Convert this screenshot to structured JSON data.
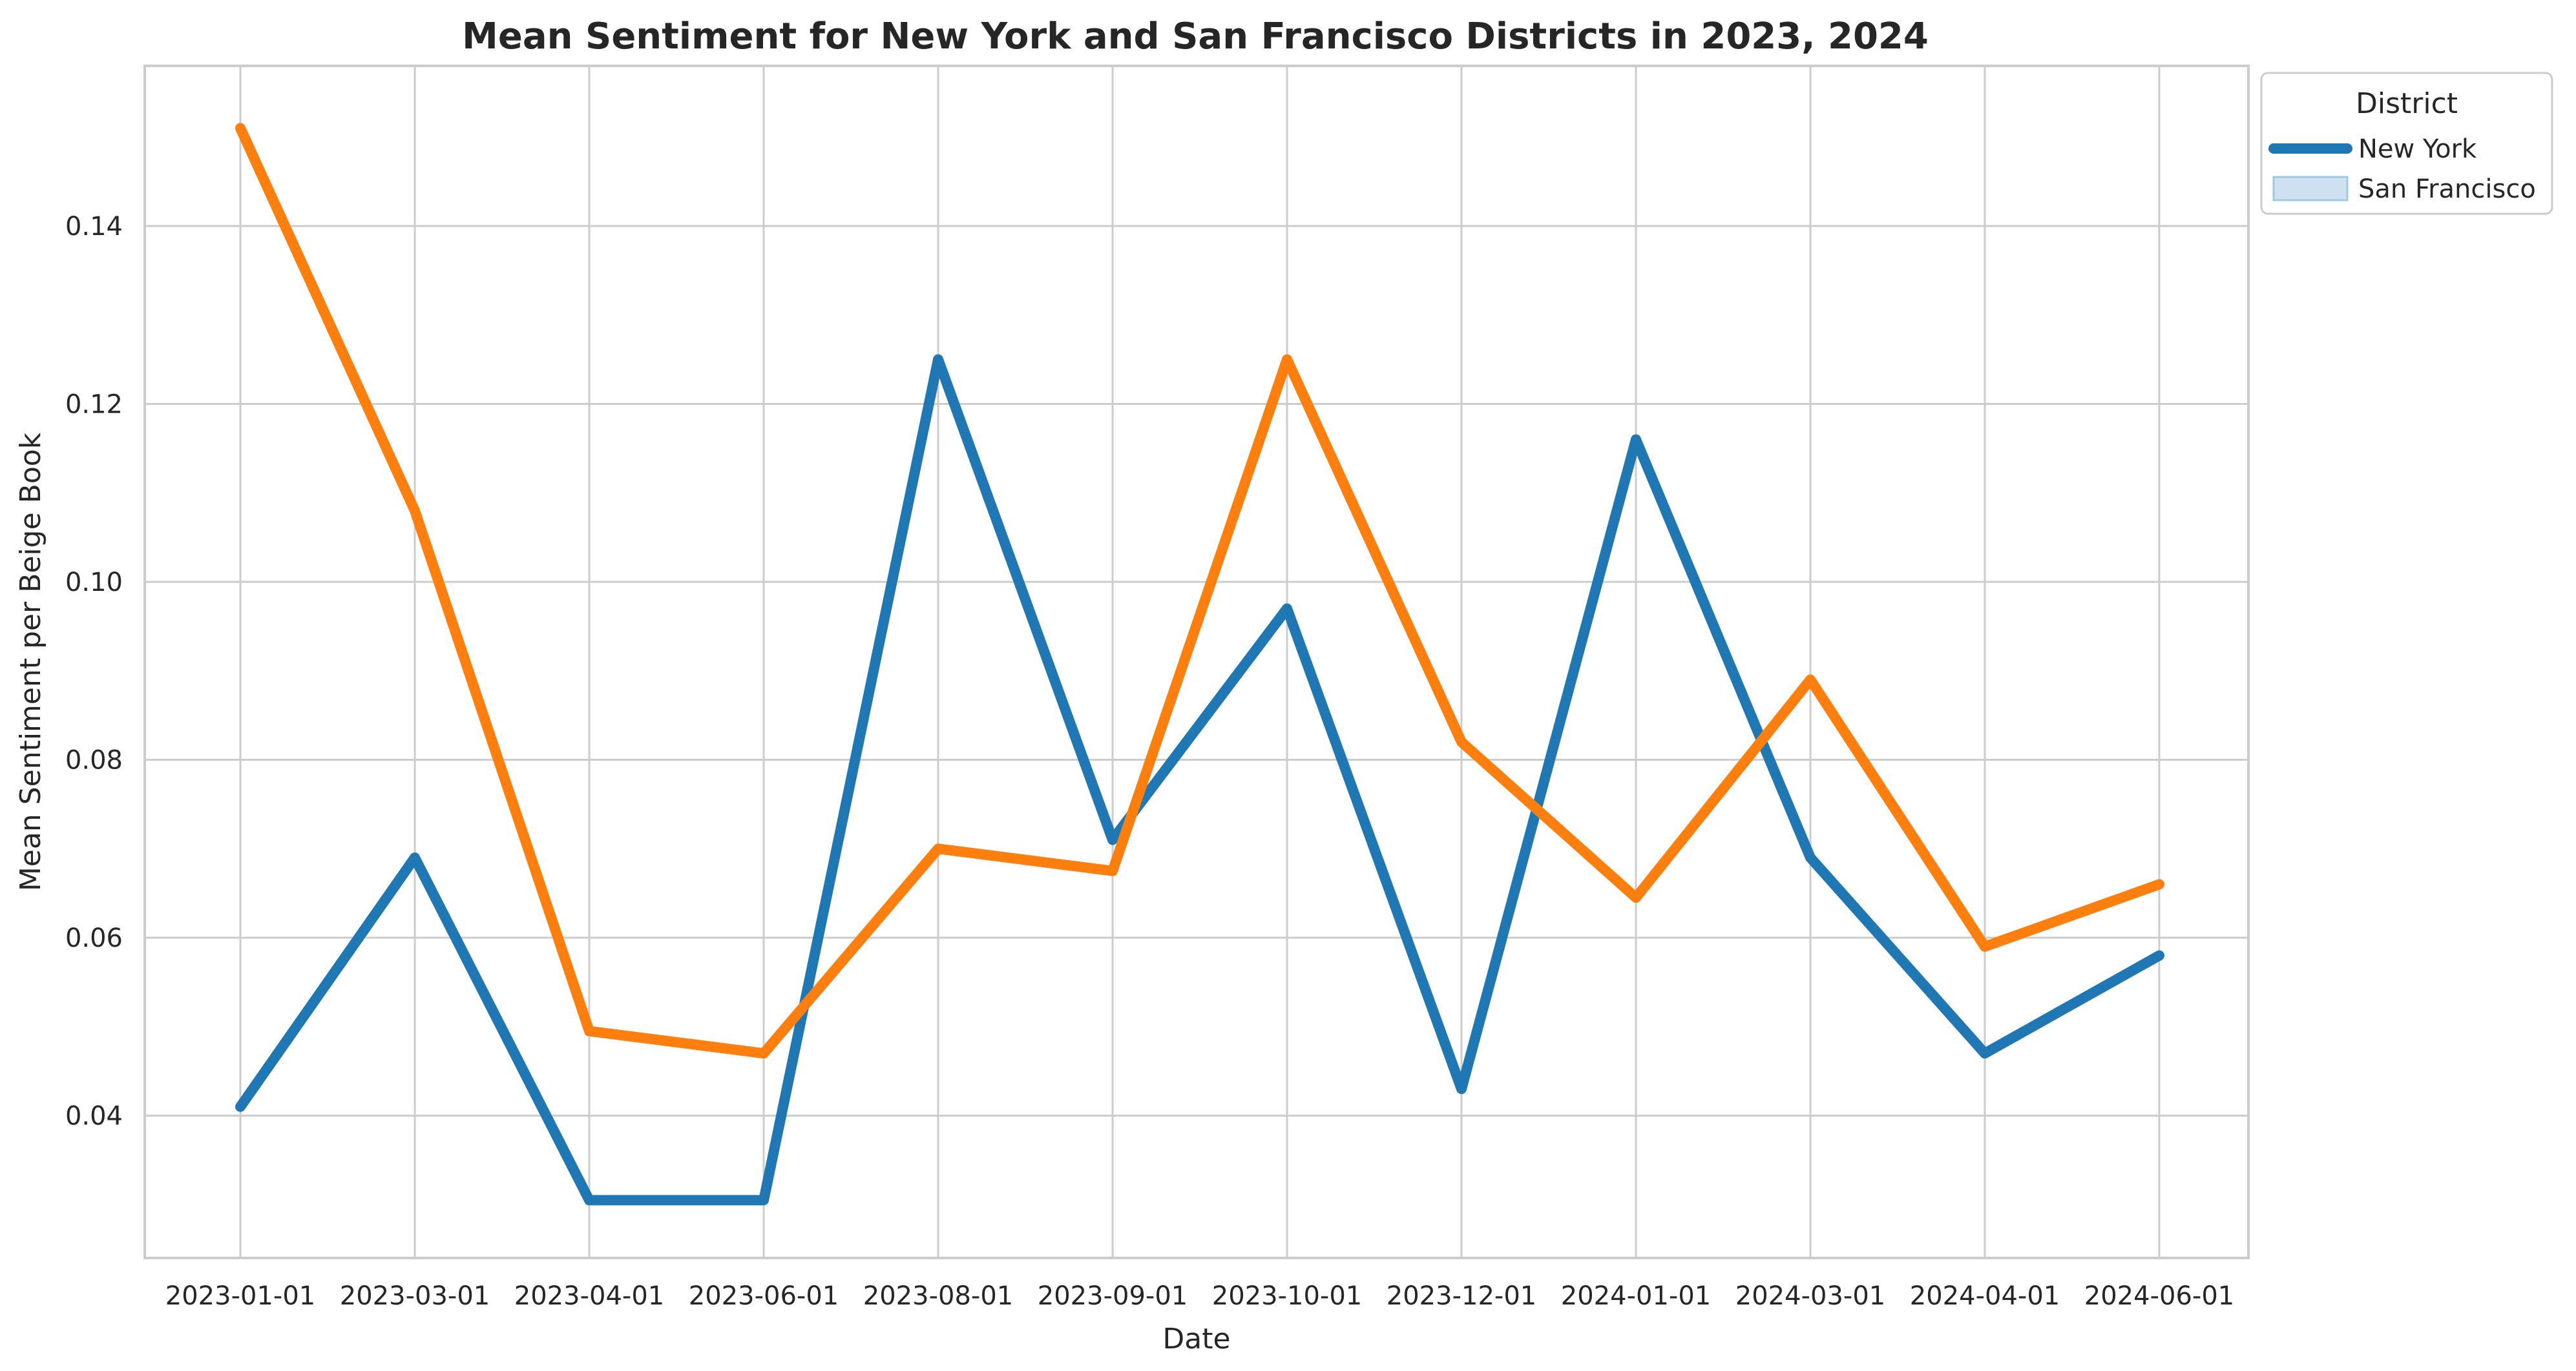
{
  "chart_data": {
    "type": "line",
    "title": "Mean Sentiment for New York and San Francisco Districts in 2023, 2024",
    "xlabel": "Date",
    "ylabel": "Mean Sentiment per Beige Book",
    "categories": [
      "2023-01-01",
      "2023-03-01",
      "2023-04-01",
      "2023-06-01",
      "2023-08-01",
      "2023-09-01",
      "2023-10-01",
      "2023-12-01",
      "2024-01-01",
      "2024-03-01",
      "2024-04-01",
      "2024-06-01"
    ],
    "y_ticks": [
      0.04,
      0.06,
      0.08,
      0.1,
      0.12,
      0.14
    ],
    "y_tick_labels": [
      "0.04",
      "0.06",
      "0.08",
      "0.10",
      "0.12",
      "0.14"
    ],
    "ylim": [
      0.024,
      0.158
    ],
    "grid": true,
    "legend": {
      "title": "District",
      "placement": "outside-top-right",
      "entries": [
        {
          "label": "New York",
          "style": "line",
          "color": "#1f77b4"
        },
        {
          "label": "San Francisco",
          "style": "patch",
          "color": "#c6dbef"
        }
      ]
    },
    "series": [
      {
        "name": "New York",
        "color": "#1f77b4",
        "values": [
          0.041,
          0.069,
          0.0305,
          0.0305,
          0.125,
          0.071,
          0.097,
          0.043,
          0.116,
          0.069,
          0.047,
          0.058
        ]
      },
      {
        "name": "San Francisco",
        "color": "#ff7f0e",
        "values": [
          0.151,
          0.108,
          0.0495,
          0.047,
          0.07,
          0.0675,
          0.125,
          0.082,
          0.0645,
          0.089,
          0.059,
          0.066
        ]
      }
    ]
  }
}
